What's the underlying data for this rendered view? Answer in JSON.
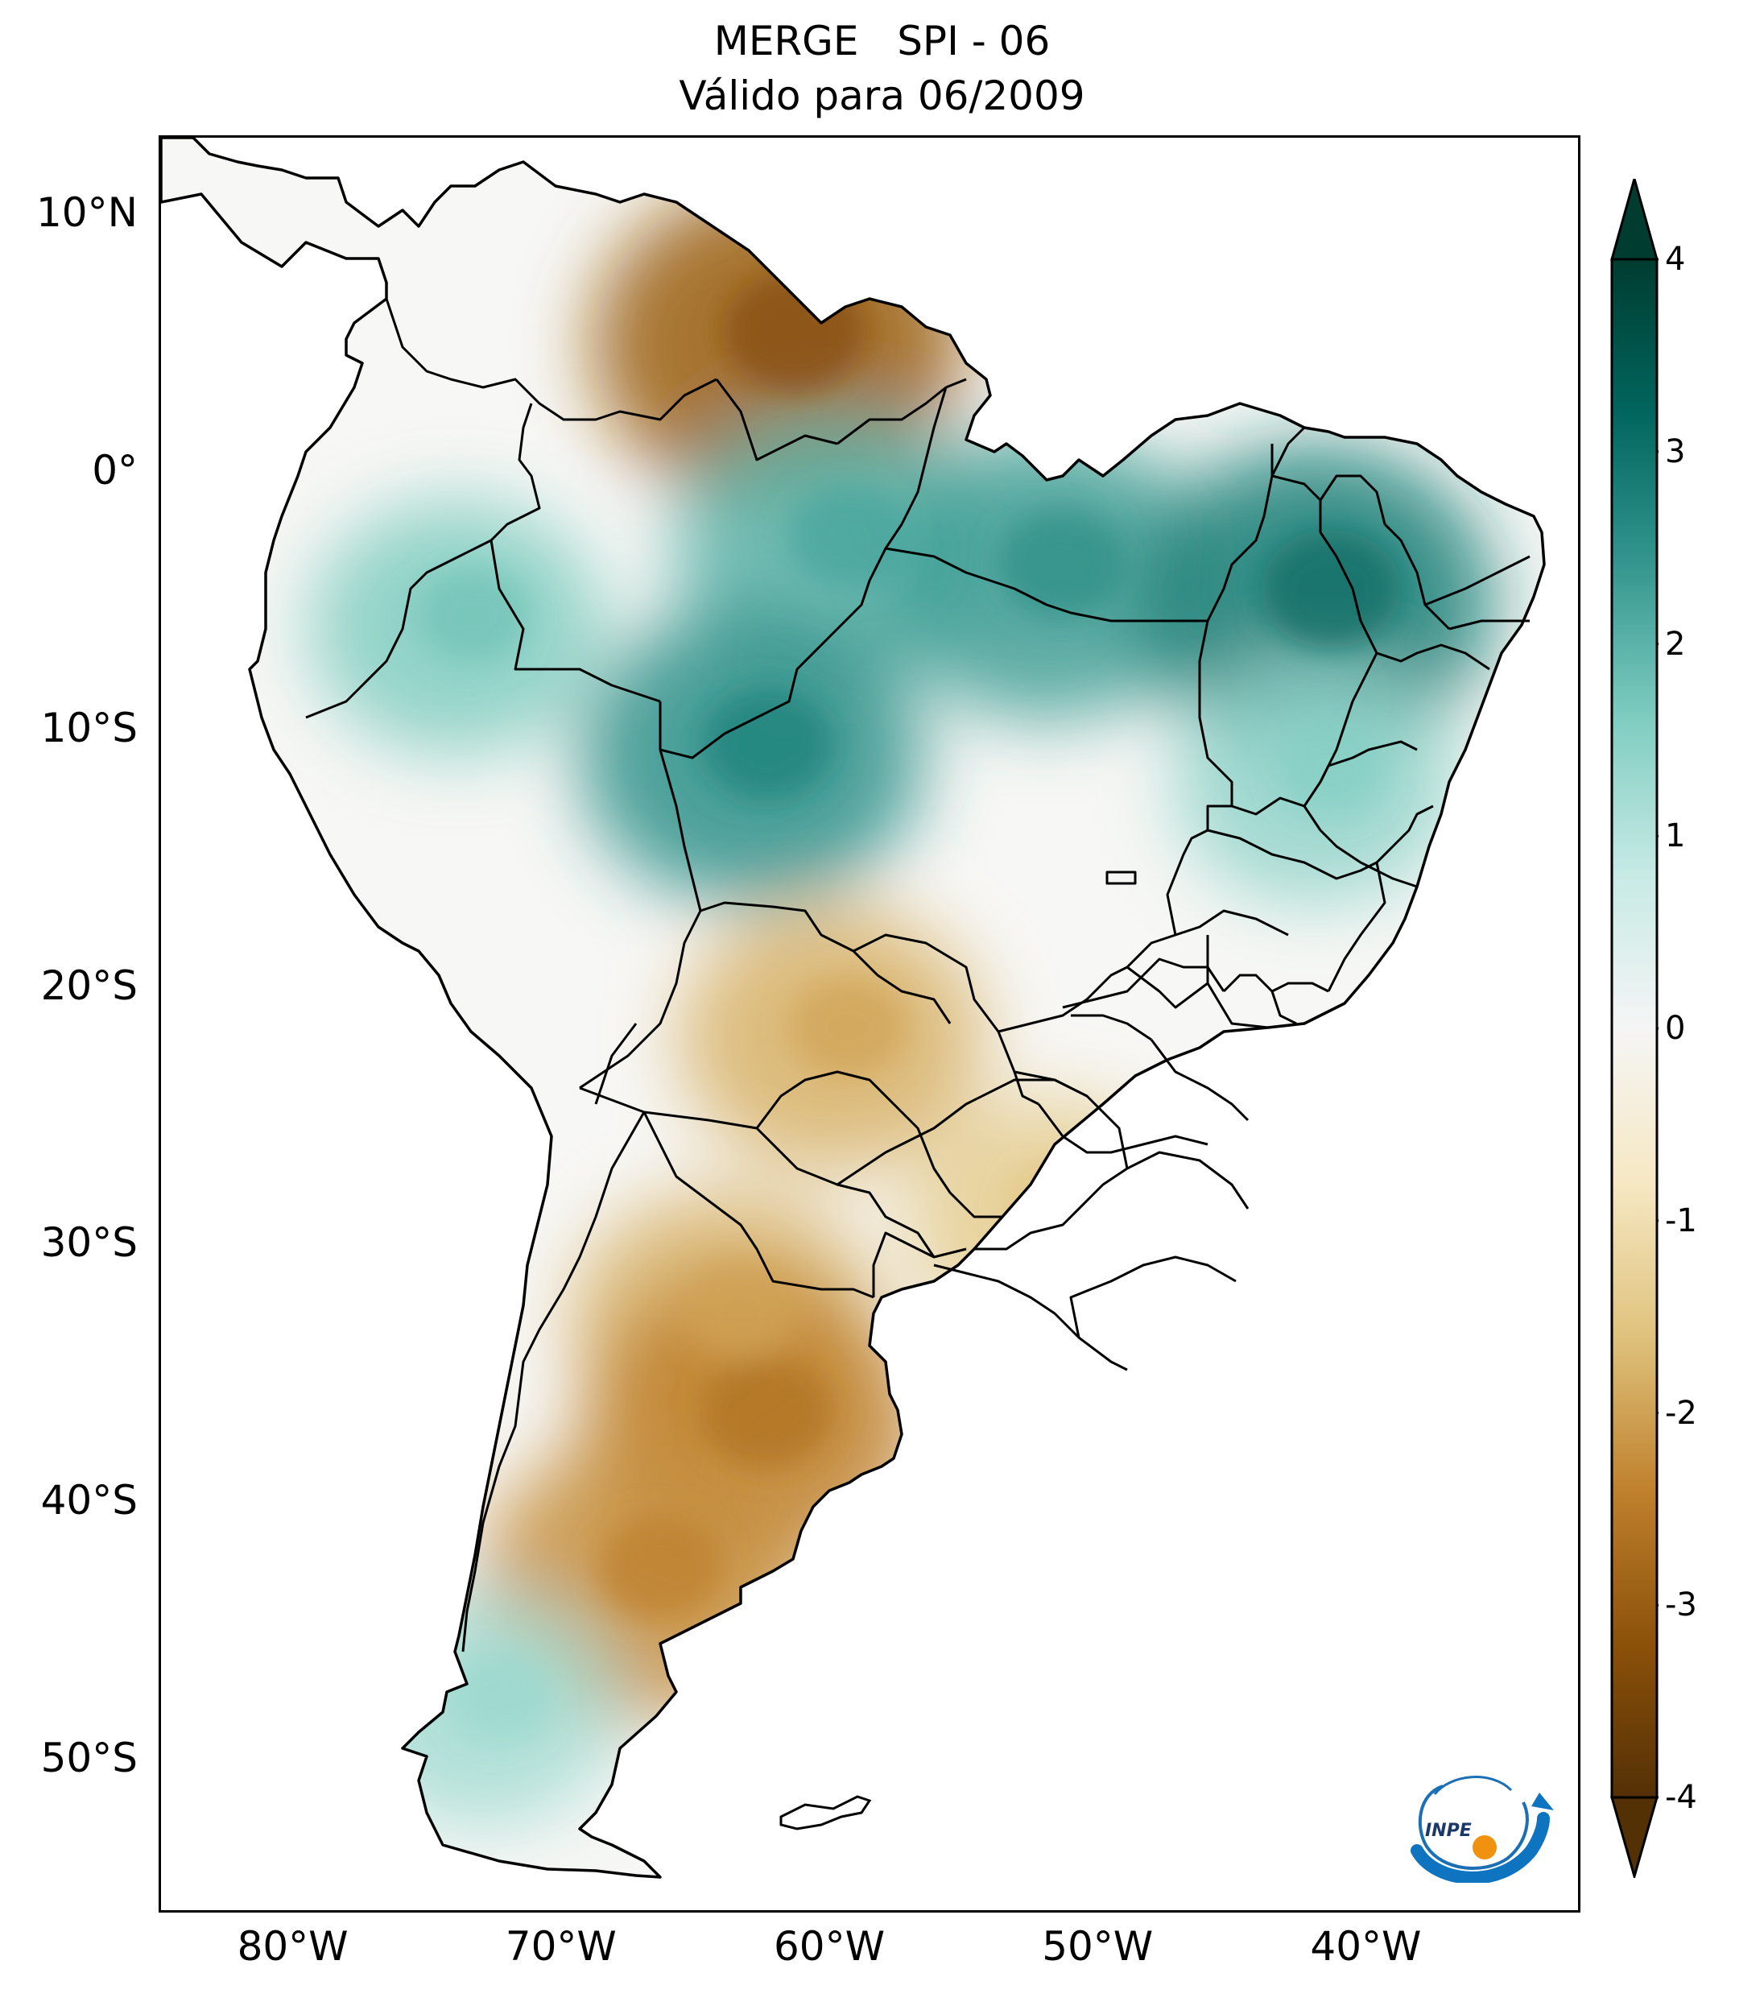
{
  "title": {
    "line1": "MERGE   SPI - 06",
    "line2": "Válido para 06/2009"
  },
  "map": {
    "lon_range": [
      -85,
      -32
    ],
    "lat_range": [
      -56,
      13
    ],
    "lat_ticks": [
      {
        "value": 10,
        "label": "10°N"
      },
      {
        "value": 0,
        "label": "0°"
      },
      {
        "value": -10,
        "label": "10°S"
      },
      {
        "value": -20,
        "label": "20°S"
      },
      {
        "value": -30,
        "label": "30°S"
      },
      {
        "value": -40,
        "label": "40°S"
      },
      {
        "value": -50,
        "label": "50°S"
      }
    ],
    "lon_ticks": [
      {
        "value": -80,
        "label": "80°W"
      },
      {
        "value": -70,
        "label": "70°W"
      },
      {
        "value": -60,
        "label": "60°W"
      },
      {
        "value": -50,
        "label": "50°W"
      },
      {
        "value": -40,
        "label": "40°W"
      }
    ],
    "spi_regions": [
      {
        "name": "Venezuela / Guyana deficit",
        "lon": -62,
        "lat": 5,
        "value": -3
      },
      {
        "name": "Amazon surplus",
        "lon": -60,
        "lat": -3,
        "value": 2
      },
      {
        "name": "Pará surplus",
        "lon": -52,
        "lat": -4,
        "value": 2.3
      },
      {
        "name": "Northeast Brazil surplus",
        "lon": -42,
        "lat": -5,
        "value": 2.8
      },
      {
        "name": "Rondônia surplus",
        "lon": -63,
        "lat": -11,
        "value": 2.5
      },
      {
        "name": "Bahia surplus",
        "lon": -42,
        "lat": -12,
        "value": 1.4
      },
      {
        "name": "Peru surplus",
        "lon": -74,
        "lat": -6,
        "value": 1.6
      },
      {
        "name": "Chaco deficit",
        "lon": -60,
        "lat": -22,
        "value": -1.8
      },
      {
        "name": "Central Argentina deficit",
        "lon": -64,
        "lat": -33,
        "value": -1.8
      },
      {
        "name": "Pampa deficit",
        "lon": -63,
        "lat": -37,
        "value": -2.4
      },
      {
        "name": "Patagonia deficit",
        "lon": -67,
        "lat": -43,
        "value": -2.2
      },
      {
        "name": "Southern Brazil deficit",
        "lon": -52,
        "lat": -29,
        "value": -1.4
      },
      {
        "name": "Chile surplus",
        "lon": -73,
        "lat": -48,
        "value": 1.2
      }
    ]
  },
  "colorbar": {
    "min": -4,
    "max": 4,
    "colors": [
      "#543005",
      "#8c510a",
      "#bf812d",
      "#dfc27d",
      "#f6e8c3",
      "#f5f5f5",
      "#c7eae5",
      "#80cdc1",
      "#35978f",
      "#01665e",
      "#003c30"
    ],
    "ticks": [
      {
        "value": 4,
        "label": "4"
      },
      {
        "value": 3,
        "label": "3"
      },
      {
        "value": 2,
        "label": "2"
      },
      {
        "value": 1,
        "label": "1"
      },
      {
        "value": 0,
        "label": "0"
      },
      {
        "value": -1,
        "label": "-1"
      },
      {
        "value": -2,
        "label": "-2"
      },
      {
        "value": -3,
        "label": "-3"
      },
      {
        "value": -4,
        "label": "-4"
      }
    ]
  },
  "logo": {
    "text": "INPE"
  }
}
